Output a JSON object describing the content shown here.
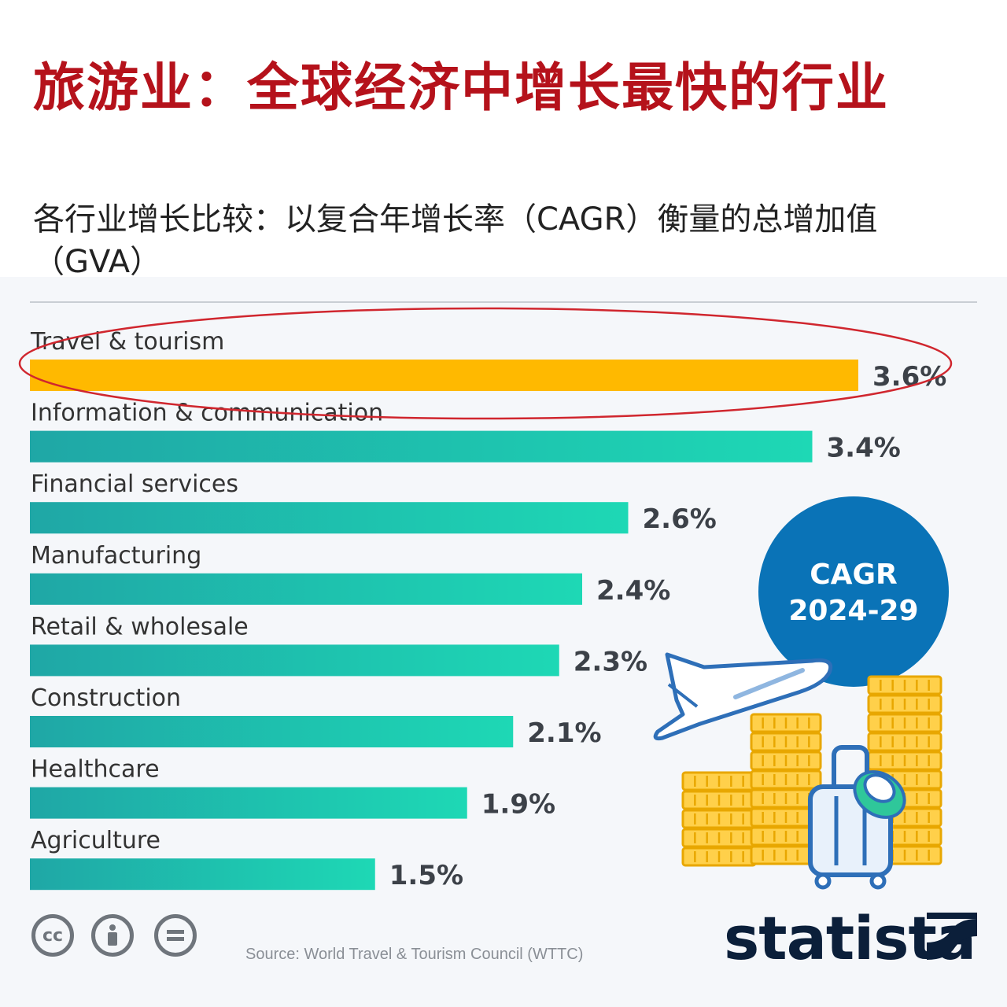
{
  "headline": "旅游业：全球经济中增长最快的行业",
  "subheadline": "各行业增长比较：以复合年增长率（CAGR）衡量的总增加值（GVA）",
  "badge": {
    "line1": "CAGR",
    "line2": "2024-29"
  },
  "source": "Source: World Travel & Tourism Council (WTTC)",
  "brand": "statista",
  "license_icons": [
    "cc-icon",
    "attribution-icon",
    "no-derivatives-icon"
  ],
  "colors": {
    "headline": "#b5121b",
    "highlight_bar": "#ffb900",
    "bar_start": "#1fa7a6",
    "bar_end": "#1ed8b5",
    "badge": "#0a73b7",
    "annotation_ellipse": "#d0262e"
  },
  "chart_data": {
    "type": "bar",
    "orientation": "horizontal",
    "categories": [
      "Travel & tourism",
      "Information & communication",
      "Financial services",
      "Manufacturing",
      "Retail & wholesale",
      "Construction",
      "Healthcare",
      "Agriculture"
    ],
    "values": [
      3.6,
      3.4,
      2.6,
      2.4,
      2.3,
      2.1,
      1.9,
      1.5
    ],
    "value_labels": [
      "3.6%",
      "3.4%",
      "2.6%",
      "2.4%",
      "2.3%",
      "2.1%",
      "1.9%",
      "1.5%"
    ],
    "highlighted_category": "Travel & tourism",
    "xlim": [
      0,
      3.6
    ],
    "unit": "%",
    "grid": false
  }
}
